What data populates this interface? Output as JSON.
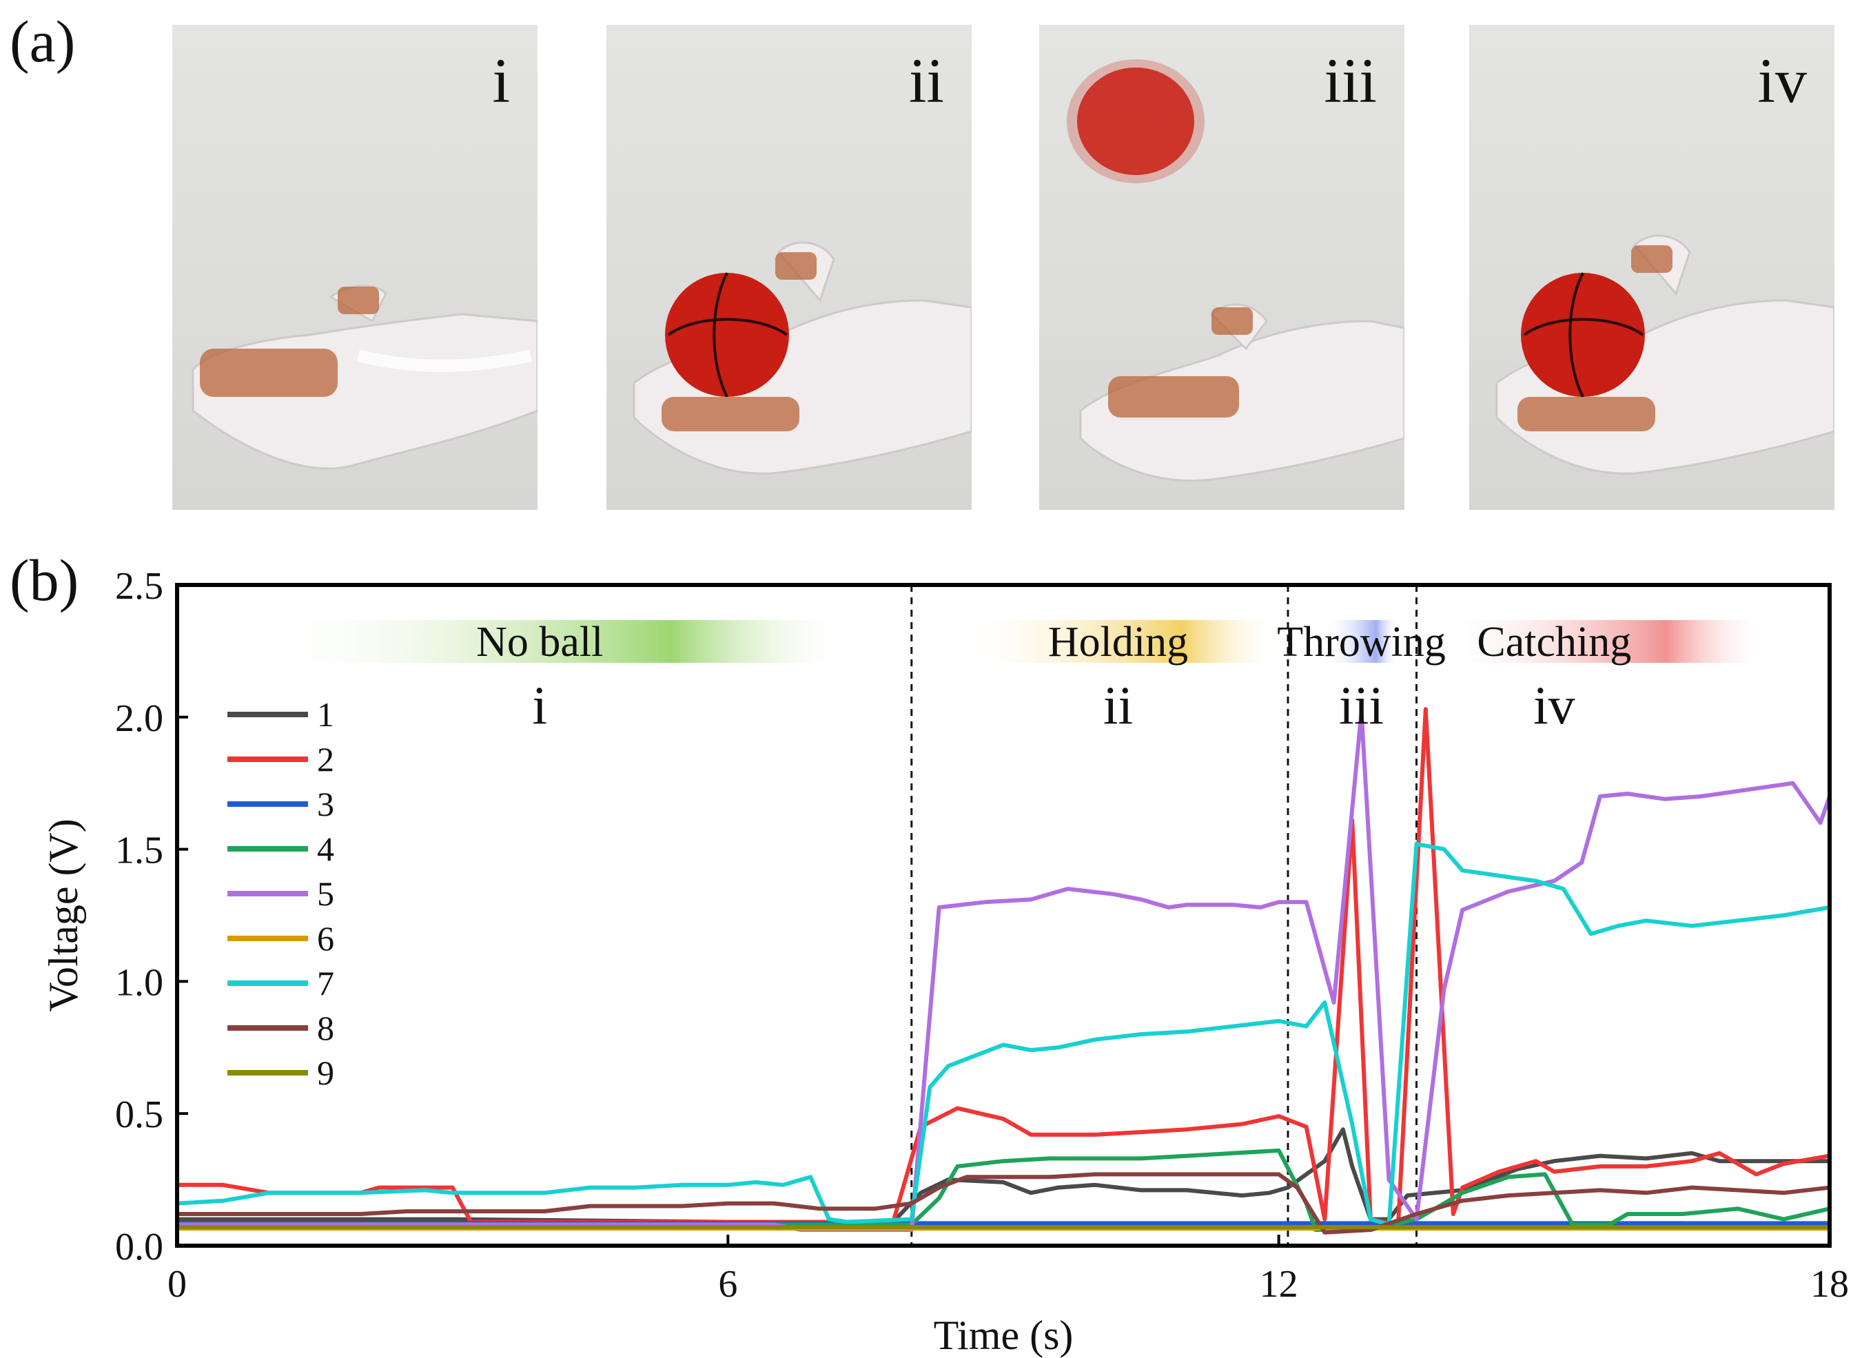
{
  "panels": {
    "a_label": "(a)",
    "b_label": "(b)",
    "photos": [
      {
        "numeral": "i",
        "ball": "none"
      },
      {
        "numeral": "ii",
        "ball": "held"
      },
      {
        "numeral": "iii",
        "ball": "airborne"
      },
      {
        "numeral": "iv",
        "ball": "held"
      }
    ]
  },
  "colors": {
    "s1": "#4a4a4a",
    "s2": "#ef3535",
    "s3": "#1f5bd6",
    "s4": "#1fa35a",
    "s5": "#b06fe0",
    "s6": "#d99a00",
    "s7": "#18d0d0",
    "s8": "#8a3f3f",
    "s9": "#8a8a00",
    "ball": "#c81e14",
    "glove": "#f1eced",
    "copper": "#b8653a"
  },
  "chart_data": {
    "type": "line",
    "xlabel": "Time (s)",
    "ylabel": "Voltage (V)",
    "xlim": [
      0,
      18
    ],
    "ylim": [
      0,
      2.5
    ],
    "xticks": [
      0,
      6,
      12,
      18
    ],
    "xtick_labels": [
      "0",
      "6",
      "12",
      "18"
    ],
    "yticks": [
      0,
      0.5,
      1.0,
      1.5,
      2.0,
      2.5
    ],
    "ytick_labels": [
      "0.0",
      "0.5",
      "1.0",
      "1.5",
      "2.0",
      "2.5"
    ],
    "phase_dividers": [
      8.0,
      12.1,
      13.5
    ],
    "phases": [
      {
        "name": "No ball",
        "numeral": "i",
        "color": "#8ccf5a",
        "band": [
          0.9,
          7.3
        ],
        "center": 3.95
      },
      {
        "name": "Holding",
        "numeral": "ii",
        "color": "#f2c84a",
        "band": [
          8.5,
          12.0
        ],
        "center": 10.25
      },
      {
        "name": "Throwing",
        "numeral": "iii",
        "color": "#8fa0ee",
        "band": [
          12.5,
          13.3
        ],
        "center": 12.9
      },
      {
        "name": "Catching",
        "numeral": "iv",
        "color": "#ef7f7f",
        "band": [
          13.7,
          17.3
        ],
        "center": 15.0
      }
    ],
    "series": [
      {
        "name": "1",
        "points": [
          [
            0,
            0.1
          ],
          [
            3,
            0.1
          ],
          [
            6,
            0.09
          ],
          [
            7.8,
            0.09
          ],
          [
            8.1,
            0.2
          ],
          [
            8.4,
            0.25
          ],
          [
            9,
            0.24
          ],
          [
            9.3,
            0.2
          ],
          [
            9.6,
            0.22
          ],
          [
            10,
            0.23
          ],
          [
            10.5,
            0.21
          ],
          [
            11,
            0.21
          ],
          [
            11.6,
            0.19
          ],
          [
            11.9,
            0.2
          ],
          [
            12.1,
            0.22
          ],
          [
            12.5,
            0.32
          ],
          [
            12.7,
            0.44
          ],
          [
            12.8,
            0.3
          ],
          [
            13.0,
            0.1
          ],
          [
            13.2,
            0.1
          ],
          [
            13.4,
            0.19
          ],
          [
            14,
            0.21
          ],
          [
            14.6,
            0.29
          ],
          [
            15,
            0.32
          ],
          [
            15.5,
            0.34
          ],
          [
            16,
            0.33
          ],
          [
            16.5,
            0.35
          ],
          [
            16.8,
            0.32
          ],
          [
            17.2,
            0.32
          ],
          [
            18,
            0.32
          ]
        ]
      },
      {
        "name": "2",
        "points": [
          [
            0,
            0.23
          ],
          [
            0.5,
            0.23
          ],
          [
            1,
            0.2
          ],
          [
            2,
            0.2
          ],
          [
            2.2,
            0.22
          ],
          [
            3,
            0.22
          ],
          [
            3.2,
            0.09
          ],
          [
            6,
            0.09
          ],
          [
            7.8,
            0.09
          ],
          [
            8.1,
            0.45
          ],
          [
            8.5,
            0.52
          ],
          [
            9,
            0.48
          ],
          [
            9.3,
            0.42
          ],
          [
            10,
            0.42
          ],
          [
            10.5,
            0.43
          ],
          [
            11,
            0.44
          ],
          [
            11.6,
            0.46
          ],
          [
            12.0,
            0.49
          ],
          [
            12.3,
            0.45
          ],
          [
            12.5,
            0.1
          ],
          [
            12.8,
            1.61
          ],
          [
            13.0,
            0.1
          ],
          [
            13.3,
            0.08
          ],
          [
            13.6,
            2.03
          ],
          [
            13.9,
            0.12
          ],
          [
            14,
            0.22
          ],
          [
            14.4,
            0.28
          ],
          [
            14.8,
            0.32
          ],
          [
            15,
            0.28
          ],
          [
            15.5,
            0.3
          ],
          [
            16,
            0.3
          ],
          [
            16.5,
            0.32
          ],
          [
            16.8,
            0.35
          ],
          [
            17.2,
            0.27
          ],
          [
            17.5,
            0.31
          ],
          [
            18,
            0.34
          ]
        ]
      },
      {
        "name": "3",
        "points": [
          [
            0,
            0.085
          ],
          [
            18,
            0.085
          ]
        ]
      },
      {
        "name": "4",
        "points": [
          [
            0,
            0.08
          ],
          [
            8.0,
            0.08
          ],
          [
            8.3,
            0.18
          ],
          [
            8.5,
            0.3
          ],
          [
            9,
            0.32
          ],
          [
            9.5,
            0.33
          ],
          [
            10.5,
            0.33
          ],
          [
            11,
            0.34
          ],
          [
            12.0,
            0.36
          ],
          [
            12.3,
            0.16
          ],
          [
            12.4,
            0.06
          ],
          [
            13.0,
            0.06
          ],
          [
            13.5,
            0.1
          ],
          [
            14,
            0.2
          ],
          [
            14.5,
            0.26
          ],
          [
            14.9,
            0.27
          ],
          [
            15.2,
            0.08
          ],
          [
            15.6,
            0.08
          ],
          [
            15.8,
            0.12
          ],
          [
            16.4,
            0.12
          ],
          [
            17,
            0.14
          ],
          [
            17.5,
            0.1
          ],
          [
            18,
            0.14
          ]
        ]
      },
      {
        "name": "5",
        "points": [
          [
            0,
            0.08
          ],
          [
            6.5,
            0.08
          ],
          [
            6.8,
            0.06
          ],
          [
            8.0,
            0.06
          ],
          [
            8.3,
            1.28
          ],
          [
            8.8,
            1.3
          ],
          [
            9.3,
            1.31
          ],
          [
            9.7,
            1.35
          ],
          [
            10.2,
            1.33
          ],
          [
            10.5,
            1.31
          ],
          [
            10.8,
            1.28
          ],
          [
            11.0,
            1.29
          ],
          [
            11.5,
            1.29
          ],
          [
            11.8,
            1.28
          ],
          [
            12.0,
            1.3
          ],
          [
            12.3,
            1.3
          ],
          [
            12.6,
            0.92
          ],
          [
            12.9,
            2.02
          ],
          [
            13.2,
            0.25
          ],
          [
            13.5,
            0.1
          ],
          [
            13.8,
            0.97
          ],
          [
            14,
            1.27
          ],
          [
            14.5,
            1.34
          ],
          [
            15.0,
            1.38
          ],
          [
            15.3,
            1.45
          ],
          [
            15.5,
            1.7
          ],
          [
            15.8,
            1.71
          ],
          [
            16.2,
            1.69
          ],
          [
            16.6,
            1.7
          ],
          [
            17.0,
            1.72
          ],
          [
            17.6,
            1.75
          ],
          [
            17.9,
            1.6
          ],
          [
            18,
            1.7
          ]
        ]
      },
      {
        "name": "6",
        "points": [
          [
            0,
            0.065
          ],
          [
            18,
            0.065
          ]
        ]
      },
      {
        "name": "7",
        "points": [
          [
            0,
            0.16
          ],
          [
            0.5,
            0.17
          ],
          [
            1.0,
            0.2
          ],
          [
            1.5,
            0.2
          ],
          [
            2,
            0.2
          ],
          [
            2.7,
            0.21
          ],
          [
            3,
            0.2
          ],
          [
            3.5,
            0.2
          ],
          [
            4,
            0.2
          ],
          [
            4.5,
            0.22
          ],
          [
            5,
            0.22
          ],
          [
            5.5,
            0.23
          ],
          [
            6,
            0.23
          ],
          [
            6.3,
            0.24
          ],
          [
            6.6,
            0.23
          ],
          [
            6.9,
            0.26
          ],
          [
            7.1,
            0.1
          ],
          [
            7.3,
            0.09
          ],
          [
            8.0,
            0.1
          ],
          [
            8.2,
            0.6
          ],
          [
            8.4,
            0.68
          ],
          [
            8.7,
            0.72
          ],
          [
            9,
            0.76
          ],
          [
            9.3,
            0.74
          ],
          [
            9.6,
            0.75
          ],
          [
            10,
            0.78
          ],
          [
            10.5,
            0.8
          ],
          [
            11,
            0.81
          ],
          [
            11.5,
            0.83
          ],
          [
            12,
            0.85
          ],
          [
            12.3,
            0.83
          ],
          [
            12.5,
            0.92
          ],
          [
            12.8,
            0.46
          ],
          [
            13.0,
            0.1
          ],
          [
            13.2,
            0.08
          ],
          [
            13.5,
            1.52
          ],
          [
            13.8,
            1.5
          ],
          [
            14.0,
            1.42
          ],
          [
            14.4,
            1.4
          ],
          [
            14.8,
            1.38
          ],
          [
            15.1,
            1.35
          ],
          [
            15.4,
            1.18
          ],
          [
            15.7,
            1.21
          ],
          [
            16.0,
            1.23
          ],
          [
            16.5,
            1.21
          ],
          [
            17.0,
            1.23
          ],
          [
            17.5,
            1.25
          ],
          [
            18,
            1.28
          ]
        ]
      },
      {
        "name": "8",
        "points": [
          [
            0,
            0.12
          ],
          [
            2,
            0.12
          ],
          [
            2.5,
            0.13
          ],
          [
            4,
            0.13
          ],
          [
            4.5,
            0.15
          ],
          [
            5.5,
            0.15
          ],
          [
            6,
            0.16
          ],
          [
            6.5,
            0.16
          ],
          [
            7,
            0.14
          ],
          [
            7.6,
            0.14
          ],
          [
            8.0,
            0.16
          ],
          [
            8.3,
            0.22
          ],
          [
            8.6,
            0.26
          ],
          [
            9,
            0.26
          ],
          [
            9.5,
            0.26
          ],
          [
            10,
            0.27
          ],
          [
            10.5,
            0.27
          ],
          [
            11,
            0.27
          ],
          [
            11.5,
            0.27
          ],
          [
            12,
            0.27
          ],
          [
            12.2,
            0.22
          ],
          [
            12.5,
            0.05
          ],
          [
            13.0,
            0.06
          ],
          [
            13.5,
            0.12
          ],
          [
            14,
            0.17
          ],
          [
            14.5,
            0.19
          ],
          [
            15,
            0.2
          ],
          [
            15.5,
            0.21
          ],
          [
            16,
            0.2
          ],
          [
            16.5,
            0.22
          ],
          [
            17,
            0.21
          ],
          [
            17.5,
            0.2
          ],
          [
            18,
            0.22
          ]
        ]
      },
      {
        "name": "9",
        "points": [
          [
            0,
            0.07
          ],
          [
            18,
            0.07
          ]
        ]
      }
    ]
  }
}
